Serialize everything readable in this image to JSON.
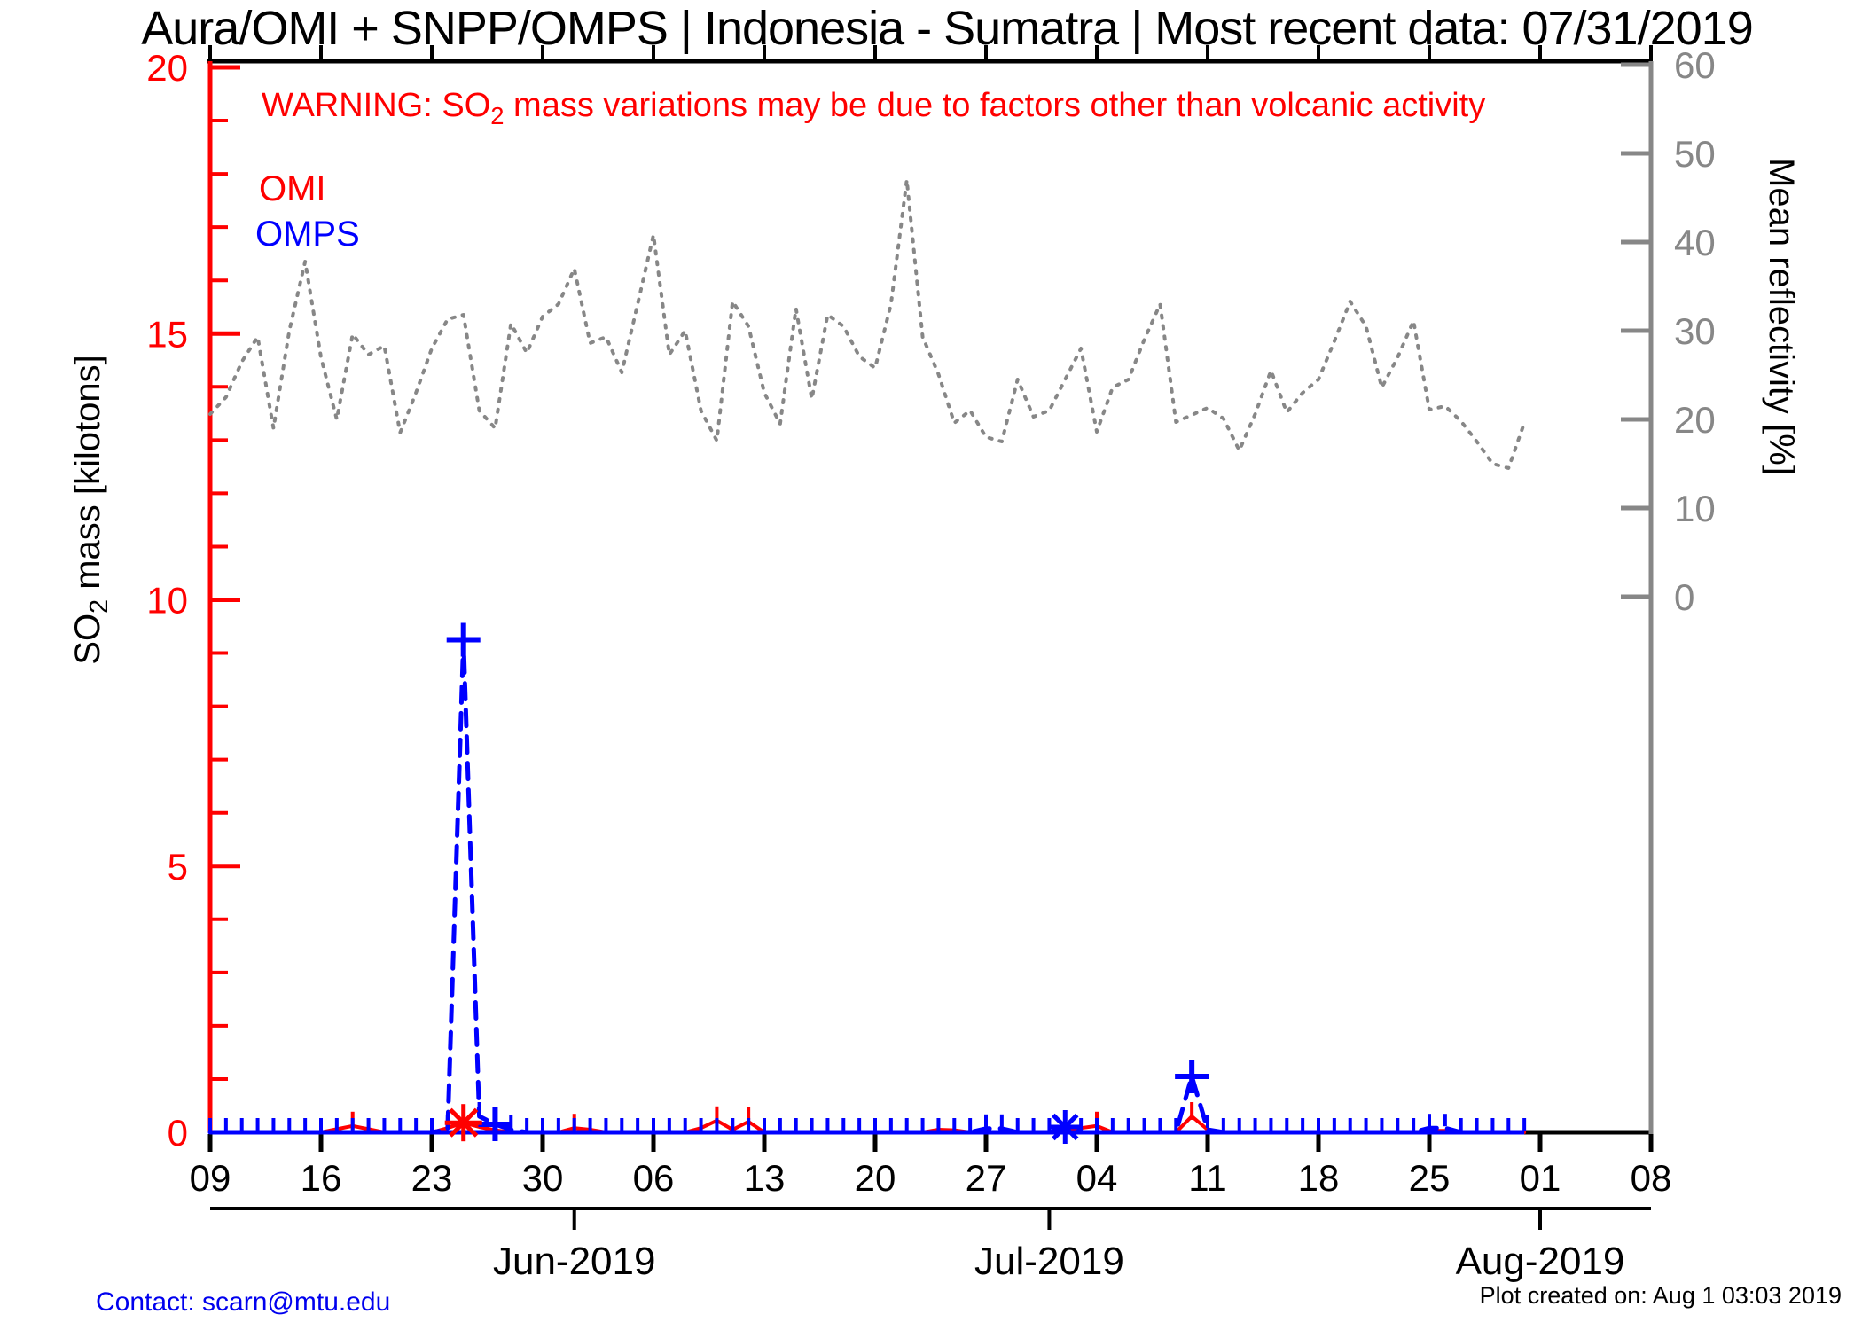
{
  "title": "Aura/OMI + SNPP/OMPS | Indonesia - Sumatra | Most recent data: 07/31/2019",
  "warning": {
    "pre": "WARNING: SO",
    "sub": "2",
    "post": " mass variations may be due to factors other than volcanic activity"
  },
  "legend": [
    {
      "label": "OMI",
      "color": "#ff0000"
    },
    {
      "label": "OMPS",
      "color": "#0000ff"
    }
  ],
  "footer": {
    "contact": "Contact: scarn@mtu.edu",
    "created": "Plot created on: Aug  1 03:03 2019"
  },
  "colors": {
    "omi": "#ff0000",
    "omps": "#0000ff",
    "reflectivity": "#878787",
    "axis_black": "#000000",
    "background": "#ffffff"
  },
  "chart_data": {
    "type": "line",
    "x_range": {
      "start_date": "2019-05-09",
      "end_date": "2019-08-08",
      "days_total": 91
    },
    "x_tick_labels": [
      {
        "label": "09",
        "day": 0
      },
      {
        "label": "16",
        "day": 7
      },
      {
        "label": "23",
        "day": 14
      },
      {
        "label": "30",
        "day": 21
      },
      {
        "label": "06",
        "day": 28
      },
      {
        "label": "13",
        "day": 35
      },
      {
        "label": "20",
        "day": 42
      },
      {
        "label": "27",
        "day": 49
      },
      {
        "label": "04",
        "day": 56
      },
      {
        "label": "11",
        "day": 63
      },
      {
        "label": "18",
        "day": 70
      },
      {
        "label": "25",
        "day": 77
      },
      {
        "label": "01",
        "day": 84
      },
      {
        "label": "08",
        "day": 91
      }
    ],
    "month_labels": [
      {
        "label": "Jun-2019",
        "day": 23
      },
      {
        "label": "Jul-2019",
        "day": 53
      },
      {
        "label": "Aug-2019",
        "day": 84
      }
    ],
    "so2_axis": {
      "label_pre": "SO",
      "label_sub": "2",
      "label_post": " mass [kilotons]",
      "color": "#ff0000",
      "min": 0,
      "max": 20,
      "major_ticks": [
        0,
        5,
        10,
        15,
        20
      ],
      "minor_step": 1
    },
    "refl_axis": {
      "label": "Mean reflectivity [%]",
      "color": "#878787",
      "min": 0,
      "max": 60,
      "major_ticks": [
        0,
        10,
        20,
        30,
        40,
        50,
        60
      ]
    },
    "series": [
      {
        "name": "Mean reflectivity",
        "color": "#878787",
        "style": "dotted",
        "axis": "right",
        "daily_values_pct": [
          20.6,
          22.5,
          26.5,
          29.3,
          19.0,
          30.0,
          37.8,
          27.0,
          20.0,
          29.6,
          27.3,
          28.3,
          18.5,
          23.0,
          28.0,
          31.3,
          31.8,
          21.0,
          19.0,
          30.8,
          27.5,
          31.6,
          33.0,
          37.0,
          28.6,
          29.3,
          25.3,
          33.0,
          40.8,
          27.3,
          30.0,
          21.0,
          17.6,
          33.3,
          30.5,
          23.0,
          19.5,
          32.5,
          22.3,
          31.8,
          30.5,
          27.1,
          25.8,
          33.0,
          47.0,
          29.3,
          25.1,
          19.6,
          21.0,
          18.0,
          17.5,
          24.5,
          20.3,
          21.0,
          24.5,
          28.0,
          18.6,
          23.6,
          24.5,
          29.0,
          33.0,
          19.7,
          20.5,
          21.3,
          20.1,
          16.5,
          20.6,
          25.5,
          20.8,
          23.0,
          24.5,
          28.8,
          33.3,
          30.5,
          23.6,
          27.0,
          31.1,
          21.1,
          21.5,
          19.8,
          17.5,
          15.0,
          14.5,
          19.6
        ]
      },
      {
        "name": "OMI",
        "color": "#ff0000",
        "style": "solid",
        "axis": "left",
        "daily_values_kt": [
          0,
          0,
          0,
          0,
          0,
          0,
          0,
          0,
          0.06,
          0.12,
          0.06,
          0,
          0,
          0,
          0,
          0.08,
          0.18,
          0.1,
          0.04,
          0,
          0,
          0,
          0,
          0.08,
          0.05,
          0,
          0,
          0,
          0,
          0,
          0,
          0.08,
          0.22,
          0.05,
          0.2,
          0,
          0,
          0,
          0,
          0,
          0,
          0,
          0,
          0,
          0,
          0,
          0.05,
          0.04,
          0,
          0,
          0,
          0,
          0,
          0,
          0,
          0.08,
          0.12,
          0,
          0,
          0,
          0,
          0,
          0.3,
          0.05,
          0,
          0,
          0,
          0,
          0,
          0,
          0,
          0,
          0,
          0,
          0,
          0,
          0,
          0.03,
          0.03,
          0,
          0,
          0,
          0,
          0
        ],
        "tick_marker_days": [
          9,
          23,
          32,
          34,
          56,
          62
        ],
        "star_markers": [
          {
            "day": 16,
            "value_kt": 0.18
          }
        ]
      },
      {
        "name": "OMPS",
        "color": "#0000ff",
        "style": "dashed",
        "axis": "left",
        "daily_values_kt": [
          0,
          0,
          0,
          0,
          0,
          0,
          0,
          0,
          0,
          0,
          0,
          0,
          0,
          0,
          0,
          0.05,
          9.25,
          0.3,
          0.15,
          0.05,
          0,
          0,
          0,
          0,
          0,
          0,
          0,
          0,
          0,
          0,
          0,
          0,
          0,
          0,
          0,
          0,
          0,
          0,
          0,
          0,
          0,
          0,
          0,
          0,
          0,
          0,
          0,
          0,
          0,
          0.07,
          0.07,
          0,
          0,
          0,
          0.1,
          0,
          0,
          0,
          0,
          0,
          0,
          0,
          1.05,
          0.05,
          0,
          0,
          0,
          0,
          0,
          0,
          0,
          0,
          0,
          0,
          0,
          0,
          0,
          0.08,
          0.08,
          0,
          0,
          0,
          0,
          0
        ],
        "plus_markers": [
          {
            "day": 16,
            "value_kt": 9.25
          },
          {
            "day": 18,
            "value_kt": 0.15
          },
          {
            "day": 62,
            "value_kt": 1.05
          }
        ],
        "star_markers": [
          {
            "day": 54,
            "value_kt": 0.1
          }
        ],
        "daily_tick_markers": true,
        "peak_annotation": {
          "date": "2019-05-25",
          "value_kt": 9.25
        }
      }
    ],
    "grid": false,
    "legend_position": "top-left-inside"
  }
}
